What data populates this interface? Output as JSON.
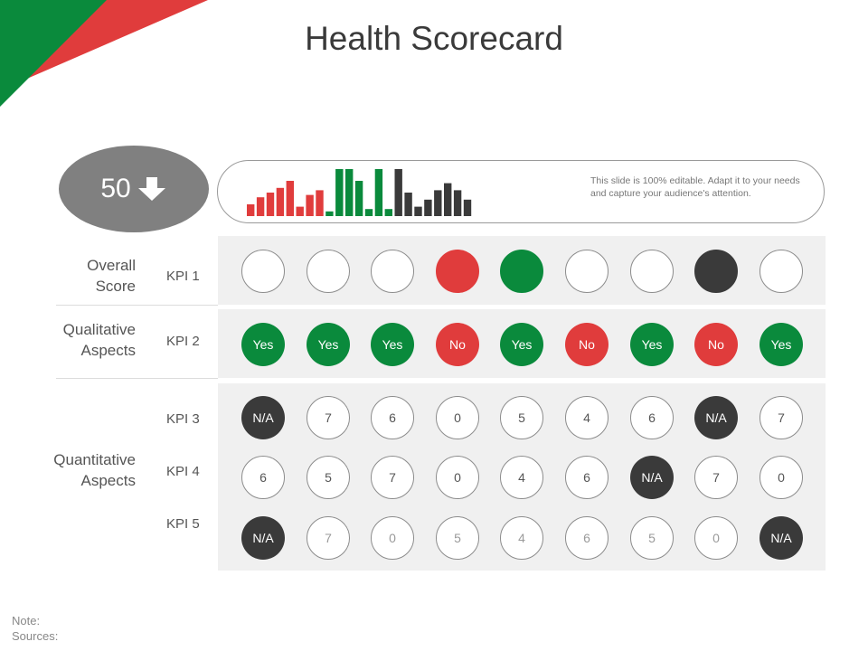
{
  "title": "Health Scorecard",
  "colors": {
    "green": "#0a8a3c",
    "red": "#e03c3c",
    "dark": "#3a3a3a",
    "gray": "#808080"
  },
  "score": {
    "value": "50",
    "trend_icon": "arrow-down-icon"
  },
  "note_text": "This slide is 100% editable. Adapt it to your needs and capture your audience's attention.",
  "chart_data": {
    "type": "bar",
    "title": "",
    "xlabel": "",
    "ylabel": "",
    "ylim": [
      0,
      10
    ],
    "values": [
      2.5,
      4,
      5,
      6,
      7.5,
      2,
      4.5,
      5.5,
      1,
      10,
      10,
      7.5,
      1.5,
      10,
      1.5,
      10,
      5,
      2,
      3.5,
      5.5,
      7,
      5.5,
      3.5
    ],
    "colors": [
      "#e03c3c",
      "#e03c3c",
      "#e03c3c",
      "#e03c3c",
      "#e03c3c",
      "#e03c3c",
      "#e03c3c",
      "#e03c3c",
      "#0a8a3c",
      "#0a8a3c",
      "#0a8a3c",
      "#0a8a3c",
      "#0a8a3c",
      "#0a8a3c",
      "#0a8a3c",
      "#3a3a3a",
      "#3a3a3a",
      "#3a3a3a",
      "#3a3a3a",
      "#3a3a3a",
      "#3a3a3a",
      "#3a3a3a",
      "#3a3a3a"
    ]
  },
  "categories": {
    "overall": "Overall\nScore",
    "qualitative": "Qualitative\nAspects",
    "quantitative": "Quantitative\nAspects"
  },
  "kpis": [
    {
      "label": "KPI 1",
      "cells": [
        {
          "t": "",
          "s": "empty"
        },
        {
          "t": "",
          "s": "empty"
        },
        {
          "t": "",
          "s": "empty"
        },
        {
          "t": "",
          "s": "red"
        },
        {
          "t": "",
          "s": "green"
        },
        {
          "t": "",
          "s": "empty"
        },
        {
          "t": "",
          "s": "empty"
        },
        {
          "t": "",
          "s": "dark"
        },
        {
          "t": "",
          "s": "empty"
        }
      ]
    },
    {
      "label": "KPI 2",
      "cells": [
        {
          "t": "Yes",
          "s": "yes"
        },
        {
          "t": "Yes",
          "s": "yes"
        },
        {
          "t": "Yes",
          "s": "yes"
        },
        {
          "t": "No",
          "s": "no"
        },
        {
          "t": "Yes",
          "s": "yes"
        },
        {
          "t": "No",
          "s": "no"
        },
        {
          "t": "Yes",
          "s": "yes"
        },
        {
          "t": "No",
          "s": "no"
        },
        {
          "t": "Yes",
          "s": "yes"
        }
      ]
    },
    {
      "label": "KPI 3",
      "cells": [
        {
          "t": "N/A",
          "s": "na"
        },
        {
          "t": "7",
          "s": "num"
        },
        {
          "t": "6",
          "s": "num"
        },
        {
          "t": "0",
          "s": "num"
        },
        {
          "t": "5",
          "s": "num"
        },
        {
          "t": "4",
          "s": "num"
        },
        {
          "t": "6",
          "s": "num"
        },
        {
          "t": "N/A",
          "s": "na"
        },
        {
          "t": "7",
          "s": "num"
        }
      ]
    },
    {
      "label": "KPI 4",
      "cells": [
        {
          "t": "6",
          "s": "num"
        },
        {
          "t": "5",
          "s": "num"
        },
        {
          "t": "7",
          "s": "num"
        },
        {
          "t": "0",
          "s": "num"
        },
        {
          "t": "4",
          "s": "num"
        },
        {
          "t": "6",
          "s": "num"
        },
        {
          "t": "N/A",
          "s": "na"
        },
        {
          "t": "7",
          "s": "num"
        },
        {
          "t": "0",
          "s": "num"
        }
      ]
    },
    {
      "label": "KPI 5",
      "cells": [
        {
          "t": "N/A",
          "s": "na"
        },
        {
          "t": "7",
          "s": "faint"
        },
        {
          "t": "0",
          "s": "faint"
        },
        {
          "t": "5",
          "s": "faint"
        },
        {
          "t": "4",
          "s": "faint"
        },
        {
          "t": "6",
          "s": "faint"
        },
        {
          "t": "5",
          "s": "faint"
        },
        {
          "t": "0",
          "s": "faint"
        },
        {
          "t": "N/A",
          "s": "na"
        }
      ]
    }
  ],
  "footer": {
    "note": "Note:",
    "sources": "Sources:"
  }
}
